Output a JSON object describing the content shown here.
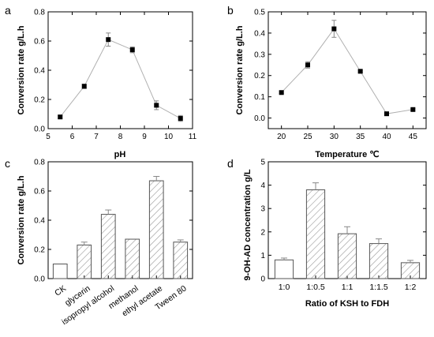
{
  "chart_data": [
    {
      "panel": "a",
      "type": "line",
      "xlabel": "pH",
      "ylabel": "Conversion rate g/L.h",
      "xlim": [
        5,
        11
      ],
      "ylim": [
        0,
        0.8
      ],
      "xticks": [
        "5",
        "6",
        "7",
        "8",
        "9",
        "10",
        "11"
      ],
      "yticks": [
        "0.0",
        "0.2",
        "0.4",
        "0.6",
        "0.8"
      ],
      "x": [
        5.5,
        6.5,
        7.5,
        8.5,
        9.5,
        10.5
      ],
      "values": [
        0.08,
        0.29,
        0.61,
        0.54,
        0.16,
        0.07
      ],
      "errors": [
        0.01,
        0.015,
        0.045,
        0.02,
        0.03,
        0.02
      ],
      "marker_color": "#000000",
      "line_color": "#b0b0b0"
    },
    {
      "panel": "b",
      "type": "line",
      "xlabel": "Temperature ℃",
      "ylabel": "Conversion rate g/L.h",
      "xlim": [
        17.5,
        47.5
      ],
      "ylim": [
        -0.05,
        0.5
      ],
      "xticks": [
        "20",
        "25",
        "30",
        "35",
        "40",
        "45"
      ],
      "yticks": [
        "0.0",
        "0.1",
        "0.2",
        "0.3",
        "0.4",
        "0.5"
      ],
      "x": [
        20,
        25,
        30,
        35,
        40,
        45
      ],
      "values": [
        0.12,
        0.25,
        0.42,
        0.22,
        0.02,
        0.04
      ],
      "errors": [
        0.005,
        0.015,
        0.04,
        0.005,
        0.005,
        0.005
      ],
      "marker_color": "#000000",
      "line_color": "#b0b0b0"
    },
    {
      "panel": "c",
      "type": "bar",
      "xlabel": "",
      "ylabel": "Conversion rate g/L.h",
      "ylim": [
        0,
        0.8
      ],
      "yticks": [
        "0.0",
        "0.2",
        "0.4",
        "0.6",
        "0.8"
      ],
      "categories": [
        "CK",
        "glycerin",
        "isopropyl alcohol",
        "methanol",
        "ethyl acetate",
        "Tween 80"
      ],
      "values": [
        0.1,
        0.23,
        0.44,
        0.27,
        0.67,
        0.25
      ],
      "errors": [
        0.0,
        0.02,
        0.03,
        0.0,
        0.03,
        0.015
      ],
      "hatched": [
        false,
        true,
        true,
        true,
        true,
        true
      ]
    },
    {
      "panel": "d",
      "type": "bar",
      "xlabel": "Ratio of KSH to FDH",
      "ylabel": "9-OH-AD concentration g/L",
      "ylim": [
        0,
        5
      ],
      "yticks": [
        "0",
        "1",
        "2",
        "3",
        "4",
        "5"
      ],
      "categories": [
        "1:0",
        "1:0.5",
        "1:1",
        "1:1.5",
        "1:2"
      ],
      "values": [
        0.8,
        3.8,
        1.92,
        1.5,
        0.68
      ],
      "errors": [
        0.08,
        0.3,
        0.3,
        0.2,
        0.1
      ],
      "hatched": [
        false,
        true,
        true,
        true,
        true
      ]
    }
  ]
}
